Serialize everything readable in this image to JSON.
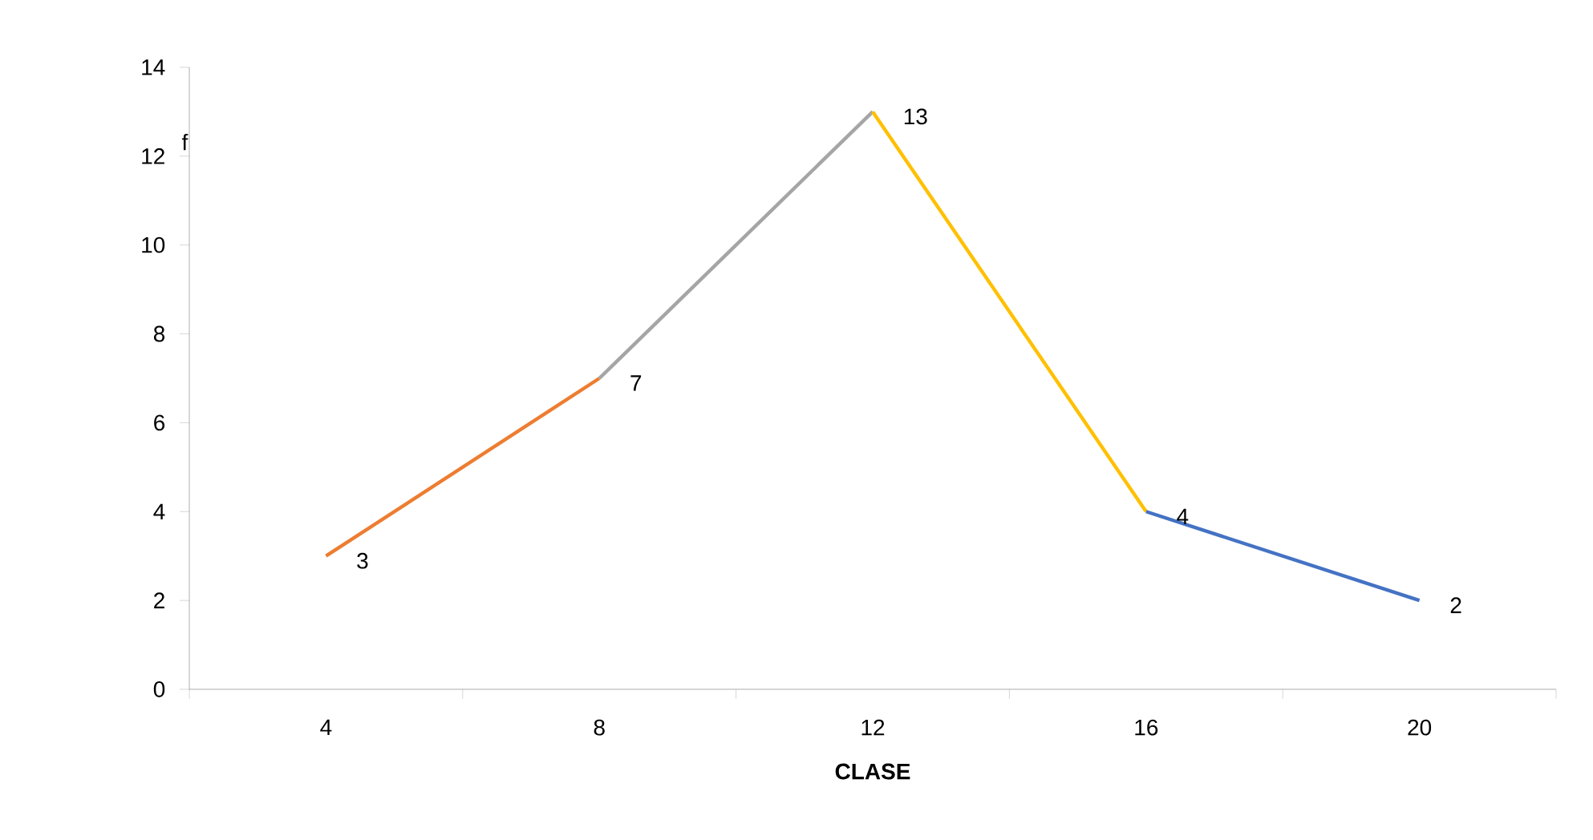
{
  "chart_data": {
    "type": "line",
    "xlabel": "CLASE",
    "ylabel": "f",
    "categories": [
      "4",
      "8",
      "12",
      "16",
      "20"
    ],
    "series": [
      {
        "color": "#ed7d31",
        "values": [
          3,
          7,
          null,
          null,
          null
        ],
        "value_labels": [
          "3",
          null,
          null,
          null,
          null
        ]
      },
      {
        "color": "#a5a5a5",
        "values": [
          null,
          7,
          13,
          null,
          null
        ],
        "value_labels": [
          null,
          "7",
          null,
          null,
          null
        ]
      },
      {
        "color": "#ffc000",
        "values": [
          null,
          null,
          13,
          4,
          null
        ],
        "value_labels": [
          null,
          null,
          "13",
          null,
          null
        ]
      },
      {
        "color": "#4472c4",
        "values": [
          null,
          null,
          null,
          4,
          2
        ],
        "value_labels": [
          null,
          null,
          null,
          "4",
          "2"
        ]
      }
    ],
    "ylim": [
      0,
      14
    ],
    "yticks": [
      0,
      2,
      4,
      6,
      8,
      10,
      12,
      14
    ],
    "grid": false,
    "marker": "none",
    "line_style": "solid"
  }
}
